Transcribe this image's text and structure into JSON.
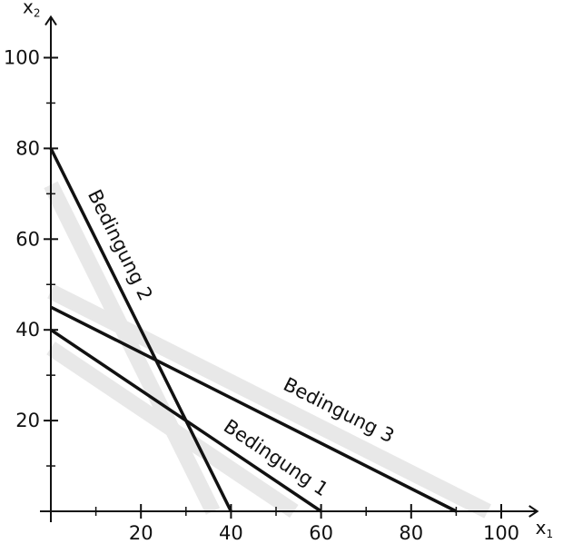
{
  "chart_data": {
    "type": "line",
    "x_axis": {
      "label": "x",
      "label_subscript": "1",
      "range": [
        0,
        108
      ],
      "tick_labels": [
        "20",
        "40",
        "60",
        "80",
        "100"
      ],
      "major_ticks": [
        20,
        40,
        60,
        80,
        100
      ],
      "minor_ticks": [
        10,
        30,
        50,
        70,
        90
      ]
    },
    "y_axis": {
      "label": "x",
      "label_subscript": "2",
      "range": [
        0,
        109
      ],
      "tick_labels": [
        "20",
        "40",
        "60",
        "80",
        "100"
      ],
      "major_ticks": [
        20,
        40,
        60,
        80,
        100
      ],
      "minor_ticks": [
        10,
        30,
        50,
        70,
        90
      ]
    },
    "grid": false,
    "series": [
      {
        "name": "Bedingung 1",
        "x": [
          0,
          60
        ],
        "y": [
          40,
          0
        ],
        "shade": [
          [
            0,
            36
          ],
          [
            54,
            0
          ]
        ]
      },
      {
        "name": "Bedingung 2",
        "x": [
          0,
          40
        ],
        "y": [
          80,
          0
        ],
        "shade": [
          [
            0,
            72
          ],
          [
            36,
            0
          ]
        ]
      },
      {
        "name": "Bedingung 3",
        "x": [
          0,
          90
        ],
        "y": [
          45,
          0
        ],
        "shade": [
          [
            0,
            48.5
          ],
          [
            97,
            0
          ]
        ]
      }
    ],
    "colors": {
      "line": "#111111",
      "shade": "#e8e8e8",
      "axis": "#111111"
    }
  }
}
